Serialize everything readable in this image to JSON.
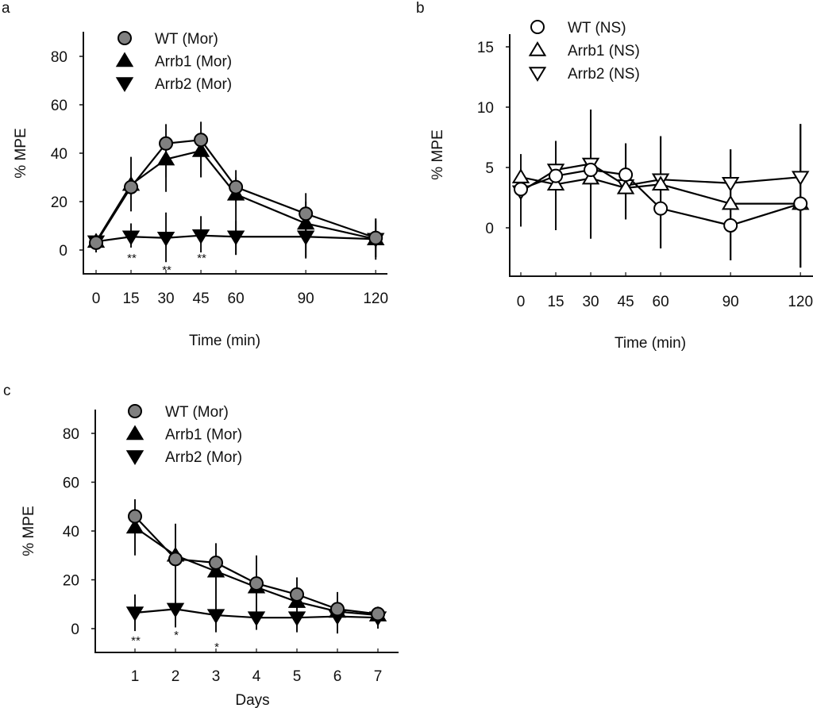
{
  "figure": {
    "panels": [
      "a",
      "b",
      "c"
    ]
  },
  "chart_data": [
    {
      "panel": "a",
      "type": "line",
      "title": "",
      "xlabel": "Time (min)",
      "ylabel": "% MPE",
      "x": [
        0,
        15,
        30,
        45,
        60,
        90,
        120
      ],
      "xticks": [
        "0",
        "15",
        "30",
        "45",
        "60",
        "90",
        "120"
      ],
      "yticks": [
        "0",
        "20",
        "40",
        "60",
        "80"
      ],
      "ytick_values": [
        0,
        20,
        40,
        60,
        80
      ],
      "xlim": [
        -5,
        125
      ],
      "ylim": [
        -10,
        90
      ],
      "grid": false,
      "legend_position": "top-left",
      "series": [
        {
          "name": "WT (Mor)",
          "marker": "circle",
          "fill": "#808080",
          "values": [
            3,
            26,
            44,
            45.5,
            26,
            15,
            5
          ],
          "err_low": [
            1,
            16,
            30,
            30,
            20,
            8,
            -3
          ],
          "err_high": [
            5,
            38.5,
            52,
            53,
            33,
            23.5,
            13
          ]
        },
        {
          "name": "Arrb1 (Mor)",
          "marker": "triangle-up",
          "fill": "#000000",
          "values": [
            3.5,
            27,
            37.5,
            41,
            23,
            11,
            4.5
          ],
          "err_low": [
            1,
            16,
            24,
            30,
            -2,
            -3,
            -3
          ],
          "err_high": [
            6,
            32,
            46,
            48,
            30,
            20,
            12
          ]
        },
        {
          "name": "Arrb2 (Mor)",
          "marker": "triangle-down",
          "fill": "#000000",
          "values": [
            3.5,
            5.5,
            5,
            6,
            5.5,
            5.5,
            4.5
          ],
          "err_low": [
            -1,
            1,
            -5,
            -1,
            -2,
            -3.5,
            -4
          ],
          "err_high": [
            6,
            11,
            15.5,
            14,
            12,
            12,
            13
          ]
        }
      ],
      "annotations": [
        {
          "x": 15,
          "text": "**",
          "level": 1
        },
        {
          "x": 30,
          "text": "**",
          "level": 2
        },
        {
          "x": 45,
          "text": "**",
          "level": 1
        }
      ]
    },
    {
      "panel": "b",
      "type": "line",
      "title": "",
      "xlabel": "Time (min)",
      "ylabel": "% MPE",
      "x": [
        0,
        15,
        30,
        45,
        60,
        90,
        120
      ],
      "xticks": [
        "0",
        "15",
        "30",
        "45",
        "60",
        "90",
        "120"
      ],
      "yticks": [
        "0",
        "5",
        "10",
        "15"
      ],
      "ytick_values": [
        0,
        5,
        10,
        15
      ],
      "xlim": [
        -5,
        128
      ],
      "ylim": [
        -4,
        16
      ],
      "grid": false,
      "legend_position": "top-left",
      "series": [
        {
          "name": "WT (NS)",
          "marker": "circle-open",
          "fill": "#ffffff",
          "values": [
            3.2,
            4.3,
            4.8,
            4.4,
            1.6,
            0.2,
            2.0
          ],
          "err_low": [
            0.1,
            -0.2,
            -0.9,
            0.7,
            -1.7,
            -2.7,
            -3.3
          ],
          "err_high": [
            6.1,
            7.2,
            9.8,
            7.0,
            7.6,
            6.5,
            8.6
          ]
        },
        {
          "name": "Arrb1 (NS)",
          "marker": "triangle-up-open",
          "fill": "#ffffff",
          "values": [
            4.2,
            3.6,
            4.1,
            3.3,
            3.6,
            2.0,
            2.0
          ],
          "err_low": [
            0.1,
            -0.2,
            -0.9,
            0.7,
            -1.7,
            -2.7,
            -3.3
          ],
          "err_high": [
            6.1,
            7.2,
            9.8,
            7.0,
            7.6,
            6.5,
            8.6
          ]
        },
        {
          "name": "Arrb2 (NS)",
          "marker": "triangle-down-open",
          "fill": "#ffffff",
          "values": [
            3.0,
            4.8,
            5.3,
            3.5,
            4.0,
            3.7,
            4.2
          ],
          "err_low": [
            0.1,
            -0.2,
            -0.9,
            0.7,
            -1.7,
            -2.7,
            -3.3
          ],
          "err_high": [
            6.1,
            7.2,
            9.8,
            7.0,
            7.6,
            6.5,
            8.6
          ]
        }
      ],
      "annotations": []
    },
    {
      "panel": "c",
      "type": "line",
      "title": "",
      "xlabel": "Days",
      "ylabel": "% MPE",
      "x": [
        1,
        2,
        3,
        4,
        5,
        6,
        7
      ],
      "xticks": [
        "1",
        "2",
        "3",
        "4",
        "5",
        "6",
        "7"
      ],
      "yticks": [
        "0",
        "20",
        "40",
        "60",
        "80"
      ],
      "ytick_values": [
        0,
        20,
        40,
        60,
        80
      ],
      "xlim": [
        -0.0,
        7.5
      ],
      "ylim": [
        -10,
        90
      ],
      "grid": false,
      "legend_position": "top-left",
      "series": [
        {
          "name": "WT (Mor)",
          "marker": "circle",
          "fill": "#808080",
          "values": [
            46,
            28.5,
            27,
            18.5,
            14,
            8,
            6
          ],
          "err_low": [
            39,
            15,
            19,
            7,
            7,
            1,
            3
          ],
          "err_high": [
            53,
            43,
            35,
            30,
            21,
            15,
            9
          ]
        },
        {
          "name": "Arrb1 (Mor)",
          "marker": "triangle-up",
          "fill": "#000000",
          "values": [
            41.5,
            30,
            23.5,
            17,
            11,
            7,
            5.5
          ],
          "err_low": [
            30,
            15,
            8,
            4,
            3,
            0,
            2
          ],
          "err_high": [
            48,
            40,
            32,
            29,
            19,
            13,
            8
          ]
        },
        {
          "name": "Arrb2 (Mor)",
          "marker": "triangle-down",
          "fill": "#000000",
          "values": [
            6.5,
            8,
            5.5,
            4.5,
            4.5,
            5,
            4.5
          ],
          "err_low": [
            -1,
            0.5,
            -1.5,
            -0.5,
            -1.5,
            -2,
            0
          ],
          "err_high": [
            14,
            15,
            13,
            11,
            10,
            13,
            8
          ]
        }
      ],
      "annotations": [
        {
          "x": 1,
          "text": "**",
          "level": 1
        },
        {
          "x": 2,
          "text": "*",
          "level": 0
        },
        {
          "x": 3,
          "text": "*",
          "level": 2
        }
      ]
    }
  ]
}
